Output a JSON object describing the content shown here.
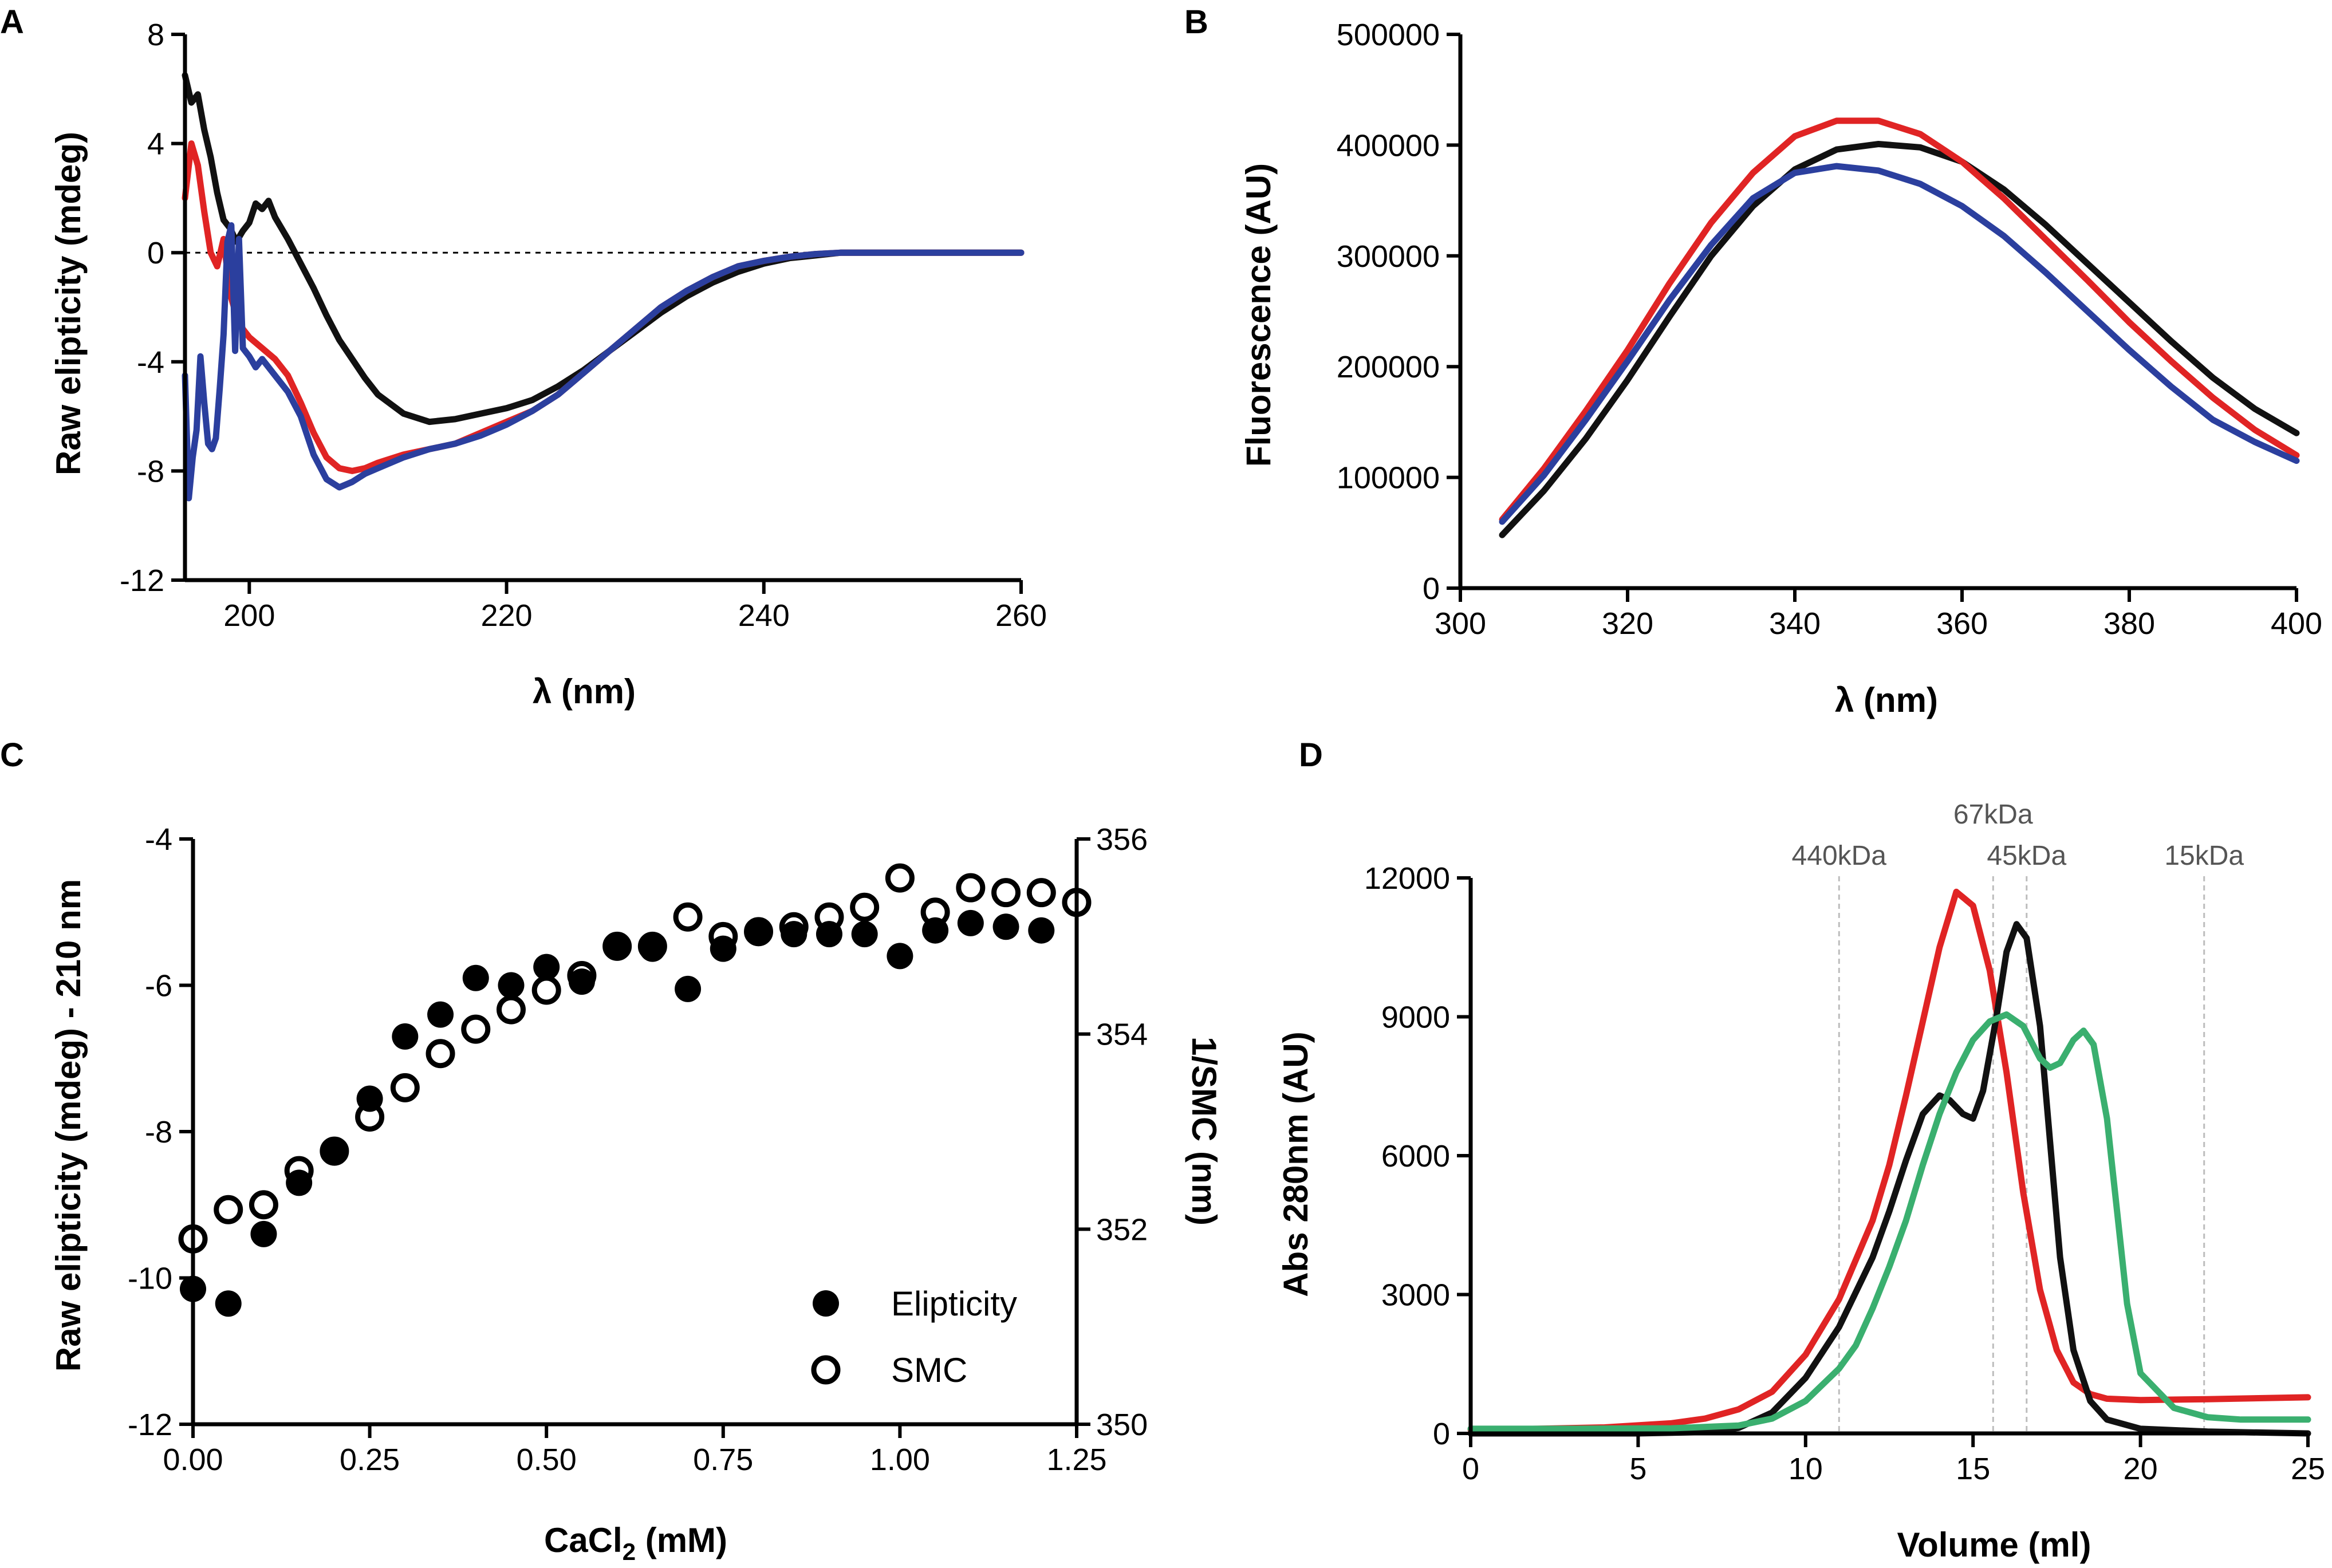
{
  "chart_data": [
    {
      "panel": "A",
      "type": "line",
      "title": "",
      "xlabel": "λ (nm)",
      "ylabel": "Raw elipticity (mdeg)",
      "xlim": [
        195,
        260
      ],
      "ylim": [
        -12,
        8
      ],
      "xticks": [
        200,
        220,
        240,
        260
      ],
      "yticks": [
        -12,
        -8,
        -4,
        0,
        4,
        8
      ],
      "reference_line": {
        "y": 0,
        "style": "dotted"
      },
      "series": [
        {
          "name": "black",
          "color": "#111111",
          "x": [
            195,
            195.5,
            196,
            196.5,
            197,
            197.5,
            198,
            198.5,
            199,
            199.5,
            200,
            200.5,
            201,
            201.5,
            202,
            203,
            204,
            205,
            206,
            207,
            208,
            209,
            210,
            212,
            214,
            216,
            218,
            220,
            222,
            224,
            226,
            228,
            230,
            232,
            234,
            236,
            238,
            240,
            242,
            244,
            246,
            248,
            250,
            255,
            260
          ],
          "y": [
            6.5,
            5.5,
            5.8,
            4.5,
            3.5,
            2.2,
            1.2,
            0.9,
            0.4,
            0.8,
            1.1,
            1.8,
            1.6,
            1.9,
            1.3,
            0.5,
            -0.4,
            -1.3,
            -2.3,
            -3.2,
            -3.9,
            -4.6,
            -5.2,
            -5.9,
            -6.2,
            -6.1,
            -5.9,
            -5.7,
            -5.4,
            -4.9,
            -4.3,
            -3.6,
            -2.9,
            -2.2,
            -1.6,
            -1.1,
            -0.7,
            -0.4,
            -0.2,
            -0.1,
            0,
            0,
            0,
            0,
            0
          ]
        },
        {
          "name": "red",
          "color": "#e02424",
          "x": [
            195,
            195.5,
            196,
            196.5,
            197,
            197.5,
            198,
            198.5,
            199,
            199.5,
            200,
            201,
            202,
            203,
            204,
            205,
            206,
            207,
            208,
            209,
            210,
            212,
            214,
            216,
            218,
            220,
            222,
            224,
            226,
            228,
            230,
            232,
            234,
            236,
            238,
            240,
            242,
            244,
            246,
            248,
            250,
            255,
            260
          ],
          "y": [
            2.0,
            4.0,
            3.2,
            1.5,
            0,
            -0.5,
            0.5,
            -1.5,
            -2.3,
            -2.8,
            -3.1,
            -3.5,
            -3.9,
            -4.5,
            -5.5,
            -6.6,
            -7.5,
            -7.9,
            -8.0,
            -7.9,
            -7.7,
            -7.4,
            -7.2,
            -7.0,
            -6.6,
            -6.2,
            -5.8,
            -5.2,
            -4.4,
            -3.6,
            -2.8,
            -2.0,
            -1.4,
            -0.9,
            -0.5,
            -0.3,
            -0.15,
            -0.05,
            0,
            0,
            0,
            0,
            0
          ]
        },
        {
          "name": "blue",
          "color": "#2b3f9e",
          "x": [
            195,
            195.3,
            195.6,
            195.9,
            196.2,
            196.5,
            196.8,
            197.1,
            197.4,
            197.7,
            198,
            198.3,
            198.6,
            198.9,
            199.2,
            199.5,
            200,
            200.5,
            201,
            202,
            203,
            204,
            205,
            206,
            207,
            208,
            209,
            210,
            212,
            214,
            216,
            218,
            220,
            222,
            224,
            226,
            228,
            230,
            232,
            234,
            236,
            238,
            240,
            242,
            244,
            246,
            248,
            250,
            255,
            260
          ],
          "y": [
            -4.5,
            -9.0,
            -7.5,
            -6.5,
            -3.8,
            -5.5,
            -7.0,
            -7.2,
            -6.8,
            -5.0,
            -3.0,
            0.4,
            1.0,
            -3.6,
            0.5,
            -3.5,
            -3.8,
            -4.2,
            -3.9,
            -4.5,
            -5.1,
            -6.0,
            -7.4,
            -8.3,
            -8.6,
            -8.4,
            -8.1,
            -7.9,
            -7.5,
            -7.2,
            -7.0,
            -6.7,
            -6.3,
            -5.8,
            -5.2,
            -4.4,
            -3.6,
            -2.8,
            -2.0,
            -1.4,
            -0.9,
            -0.5,
            -0.3,
            -0.15,
            -0.05,
            0,
            0,
            0,
            0,
            0
          ]
        }
      ]
    },
    {
      "panel": "B",
      "type": "line",
      "title": "",
      "xlabel": "λ (nm)",
      "ylabel": "Fluorescence (AU)",
      "xlim": [
        300,
        400
      ],
      "ylim": [
        0,
        500000
      ],
      "xticks": [
        300,
        320,
        340,
        360,
        380,
        400
      ],
      "yticks": [
        0,
        100000,
        200000,
        300000,
        400000,
        500000
      ],
      "series": [
        {
          "name": "black",
          "color": "#111111",
          "x": [
            305,
            310,
            315,
            320,
            325,
            330,
            335,
            340,
            345,
            350,
            355,
            360,
            365,
            370,
            375,
            380,
            385,
            390,
            395,
            400
          ],
          "y": [
            48000,
            88000,
            135000,
            188000,
            245000,
            300000,
            345000,
            378000,
            396000,
            401000,
            398000,
            385000,
            360000,
            328000,
            293000,
            258000,
            223000,
            190000,
            162000,
            140000
          ]
        },
        {
          "name": "red",
          "color": "#e02424",
          "x": [
            305,
            310,
            315,
            320,
            325,
            330,
            335,
            340,
            345,
            350,
            355,
            360,
            365,
            370,
            375,
            380,
            385,
            390,
            395,
            400
          ],
          "y": [
            62000,
            108000,
            160000,
            215000,
            275000,
            330000,
            375000,
            408000,
            422000,
            422000,
            410000,
            385000,
            352000,
            315000,
            278000,
            240000,
            205000,
            172000,
            143000,
            120000
          ]
        },
        {
          "name": "blue",
          "color": "#2b3f9e",
          "x": [
            305,
            310,
            315,
            320,
            325,
            330,
            335,
            340,
            345,
            350,
            355,
            360,
            365,
            370,
            375,
            380,
            385,
            390,
            395,
            400
          ],
          "y": [
            60000,
            102000,
            152000,
            205000,
            260000,
            310000,
            352000,
            375000,
            381000,
            377000,
            365000,
            345000,
            318000,
            285000,
            250000,
            215000,
            182000,
            152000,
            132000,
            115000
          ]
        }
      ]
    },
    {
      "panel": "C",
      "type": "scatter",
      "title": "",
      "xlabel": "CaCl2 (mM)",
      "xlabel_main": "CaCl",
      "xlabel_sub": "2",
      "xlabel_unit": " (mM)",
      "ylabel": "Raw elipticity (mdeg) - 210 nm",
      "ylabel_right": "1/SMC (nm)",
      "xlim": [
        0,
        1.25
      ],
      "ylim": [
        -12,
        -4
      ],
      "ylim_right": [
        350,
        356
      ],
      "xticks": [
        0.0,
        0.25,
        0.5,
        0.75,
        1.0,
        1.25
      ],
      "xtick_labels": [
        "0.00",
        "0.25",
        "0.50",
        "0.75",
        "1.00",
        "1.25"
      ],
      "yticks": [
        -12,
        -10,
        -8,
        -6,
        -4
      ],
      "yticks_right": [
        350,
        352,
        354,
        356
      ],
      "legend": {
        "position": "bottom-right",
        "entries": [
          "Elipticity",
          "SMC"
        ]
      },
      "series": [
        {
          "name": "Elipticity",
          "axis": "left",
          "marker": "filled-circle",
          "x": [
            0,
            0.05,
            0.1,
            0.15,
            0.2,
            0.25,
            0.3,
            0.35,
            0.4,
            0.45,
            0.5,
            0.55,
            0.6,
            0.65,
            0.7,
            0.75,
            0.8,
            0.85,
            0.9,
            0.95,
            1.0,
            1.05,
            1.1,
            1.15,
            1.2
          ],
          "y": [
            -10.15,
            -10.35,
            -9.4,
            -8.7,
            -8.25,
            -7.55,
            -6.7,
            -6.4,
            -5.9,
            -6.0,
            -5.75,
            -5.95,
            -5.45,
            -5.5,
            -6.05,
            -5.5,
            -5.25,
            -5.3,
            -5.3,
            -5.3,
            -5.6,
            -5.25,
            -5.15,
            -5.2,
            -5.25
          ]
        },
        {
          "name": "SMC",
          "axis": "right",
          "marker": "open-circle",
          "x": [
            0,
            0.05,
            0.1,
            0.15,
            0.2,
            0.25,
            0.3,
            0.35,
            0.4,
            0.45,
            0.5,
            0.55,
            0.6,
            0.65,
            0.7,
            0.75,
            0.8,
            0.85,
            0.9,
            0.95,
            1.0,
            1.05,
            1.1,
            1.15,
            1.2,
            1.25
          ],
          "y": [
            351.9,
            352.2,
            352.25,
            352.6,
            352.8,
            353.15,
            353.45,
            353.8,
            354.05,
            354.25,
            354.45,
            354.6,
            354.9,
            354.9,
            355.2,
            355.0,
            355.05,
            355.1,
            355.2,
            355.3,
            355.6,
            355.25,
            355.5,
            355.45,
            355.45,
            355.35
          ]
        }
      ]
    },
    {
      "panel": "D",
      "type": "line",
      "title": "",
      "xlabel": "Volume (ml)",
      "ylabel": "Abs 280nm (AU)",
      "xlim": [
        0,
        25
      ],
      "ylim": [
        0,
        12000
      ],
      "xticks": [
        0,
        5,
        10,
        15,
        20,
        25
      ],
      "yticks": [
        0,
        3000,
        6000,
        9000,
        12000
      ],
      "markers": [
        {
          "label": "440kDa",
          "x": 11.0
        },
        {
          "label": "67kDa",
          "x": 15.6
        },
        {
          "label": "45kDa",
          "x": 16.6
        },
        {
          "label": "15kDa",
          "x": 21.9
        }
      ],
      "series": [
        {
          "name": "red",
          "color": "#e02424",
          "x": [
            0,
            2,
            4,
            6,
            7,
            8,
            9,
            10,
            11,
            12,
            12.5,
            13,
            13.5,
            14,
            14.5,
            15,
            15.5,
            16,
            16.5,
            17,
            17.5,
            18,
            18.5,
            19,
            20,
            22,
            25
          ],
          "y": [
            80,
            100,
            130,
            220,
            320,
            520,
            900,
            1700,
            2900,
            4600,
            5800,
            7300,
            8900,
            10500,
            11700,
            11400,
            10000,
            7800,
            5200,
            3100,
            1800,
            1100,
            850,
            750,
            720,
            740,
            780
          ]
        },
        {
          "name": "black",
          "color": "#111111",
          "x": [
            0,
            5,
            7,
            8,
            9,
            10,
            11,
            12,
            12.5,
            13,
            13.5,
            14,
            14.3,
            14.7,
            15,
            15.3,
            15.7,
            16,
            16.3,
            16.6,
            17,
            17.3,
            17.6,
            18,
            18.5,
            19,
            20,
            22,
            25
          ],
          "y": [
            0,
            0,
            30,
            120,
            450,
            1200,
            2300,
            3800,
            4800,
            5900,
            6900,
            7300,
            7200,
            6900,
            6800,
            7400,
            9000,
            10400,
            11000,
            10700,
            8800,
            6300,
            3800,
            1800,
            700,
            300,
            100,
            40,
            0
          ]
        },
        {
          "name": "green",
          "color": "#3aaf6f",
          "x": [
            0,
            3,
            6,
            8,
            9,
            10,
            11,
            11.5,
            12,
            12.5,
            13,
            13.5,
            14,
            14.5,
            15,
            15.5,
            16,
            16.5,
            17,
            17.3,
            17.6,
            18,
            18.3,
            18.6,
            19,
            19.3,
            19.6,
            20,
            21,
            22,
            23,
            25
          ],
          "y": [
            100,
            100,
            110,
            170,
            320,
            700,
            1400,
            1900,
            2700,
            3600,
            4600,
            5800,
            6900,
            7800,
            8500,
            8900,
            9050,
            8800,
            8100,
            7900,
            8000,
            8500,
            8700,
            8400,
            6800,
            4800,
            2800,
            1300,
            550,
            350,
            300,
            300
          ]
        }
      ]
    }
  ]
}
